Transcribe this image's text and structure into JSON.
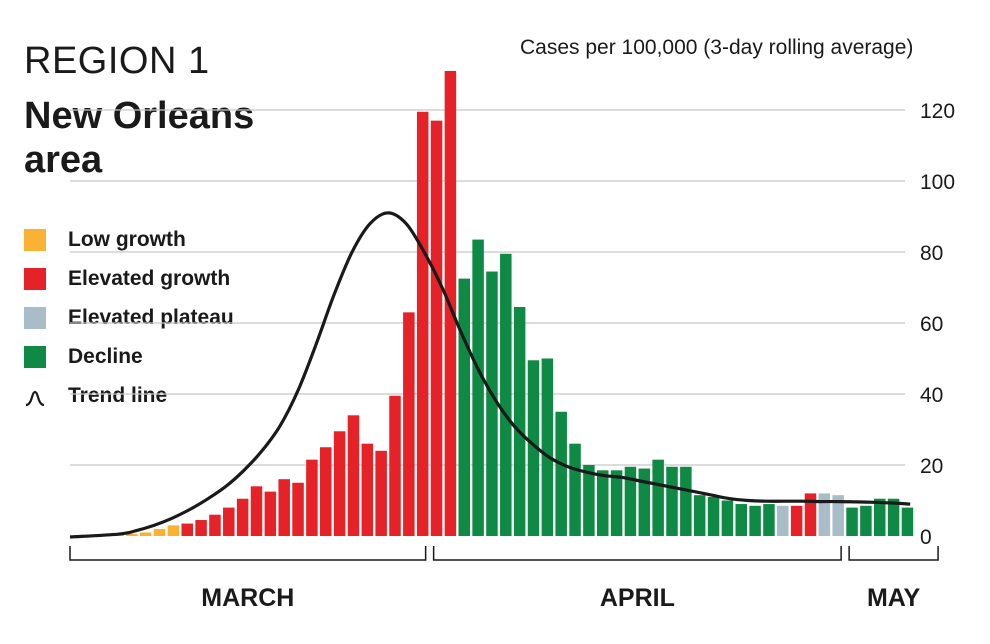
{
  "title_line1": "REGION 1",
  "title_line2": "New Orleans area",
  "units_label": "Cases per 100,000 (3-day rolling average)",
  "legend": [
    {
      "label": "Low growth",
      "color": "#f9b233",
      "kind": "swatch"
    },
    {
      "label": "Elevated growth",
      "color": "#e42227",
      "kind": "swatch"
    },
    {
      "label": "Elevated plateau",
      "color": "#a9bdc8",
      "kind": "swatch"
    },
    {
      "label": "Decline",
      "color": "#0f8a44",
      "kind": "swatch"
    },
    {
      "label": "Trend line",
      "color": "#1a1a1a",
      "kind": "line-icon"
    }
  ],
  "chart_data": {
    "type": "bar",
    "ylim": [
      0,
      130
    ],
    "yticks": [
      0,
      20,
      40,
      60,
      80,
      100,
      120
    ],
    "grid": true,
    "months": [
      {
        "label": "MARCH",
        "start_day": 0,
        "end_day": 22
      },
      {
        "label": "APRIL",
        "start_day": 23,
        "end_day": 52
      },
      {
        "label": "MAY",
        "start_day": 53,
        "end_day": 59
      }
    ],
    "status_colors": {
      "low": "#f9b233",
      "elevated": "#e42227",
      "plateau": "#a9bdc8",
      "decline": "#0f8a44"
    },
    "values": [
      0.3,
      0.6,
      1.0,
      2.0,
      3.0,
      3.5,
      4.5,
      6.0,
      8.0,
      10.5,
      14.0,
      12.5,
      16.0,
      15.0,
      21.5,
      25.0,
      29.5,
      34.0,
      26.0,
      24.0,
      39.5,
      63.0,
      119.5,
      117.0,
      131.0,
      72.5,
      83.5,
      74.5,
      79.5,
      64.5,
      49.5,
      50.0,
      35.0,
      26.0,
      20.0,
      18.5,
      18.5,
      19.5,
      19.0,
      21.5,
      19.5,
      19.5,
      11.5,
      11.0,
      10.0,
      9.0,
      8.5,
      9.0,
      8.5,
      8.5,
      12.0,
      12.0,
      11.5,
      8.0,
      8.5,
      10.5,
      10.5,
      8.0
    ],
    "status": [
      "low",
      "low",
      "low",
      "low",
      "low",
      "elevated",
      "elevated",
      "elevated",
      "elevated",
      "elevated",
      "elevated",
      "elevated",
      "elevated",
      "elevated",
      "elevated",
      "elevated",
      "elevated",
      "elevated",
      "elevated",
      "elevated",
      "elevated",
      "elevated",
      "elevated",
      "elevated",
      "elevated",
      "decline",
      "decline",
      "decline",
      "decline",
      "decline",
      "decline",
      "decline",
      "decline",
      "decline",
      "decline",
      "decline",
      "decline",
      "decline",
      "decline",
      "decline",
      "decline",
      "decline",
      "decline",
      "decline",
      "decline",
      "decline",
      "decline",
      "decline",
      "plateau",
      "elevated",
      "elevated",
      "plateau",
      "plateau",
      "decline",
      "decline",
      "decline",
      "decline",
      "decline"
    ],
    "trend": [
      0.5,
      1.5,
      3.0,
      5.0,
      7.5,
      10.5,
      14.0,
      18.5,
      24.0,
      31.0,
      41.0,
      54.0,
      68.0,
      80.0,
      88.0,
      91.0,
      88.0,
      80.0,
      70.0,
      58.0,
      47.0,
      38.0,
      31.0,
      26.0,
      22.0,
      19.5,
      18.0,
      17.0,
      16.5,
      15.5,
      14.5,
      13.5,
      12.5,
      11.5,
      10.5,
      10.0,
      9.8,
      9.8,
      9.8,
      9.7,
      9.7,
      9.6,
      9.5,
      9.3,
      9.0
    ],
    "trend_x_start": 0,
    "trend_x_step": 1.3
  }
}
